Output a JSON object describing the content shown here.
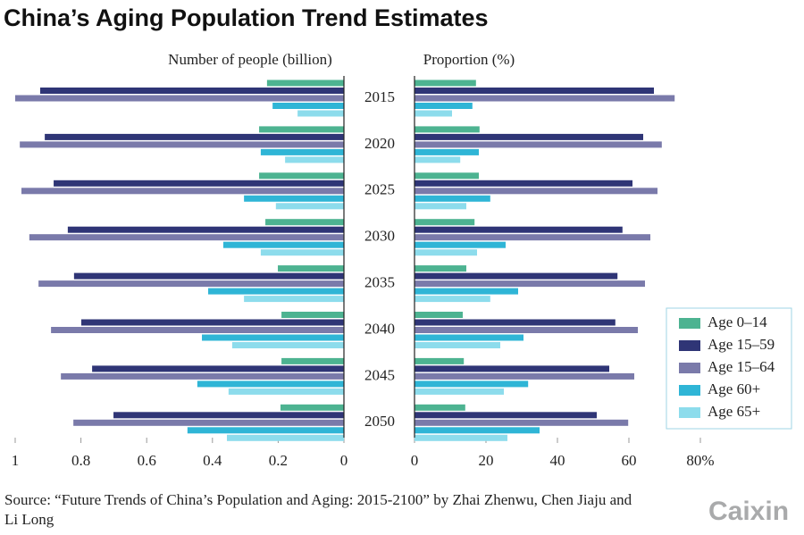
{
  "title": "China’s Aging Population Trend Estimates",
  "source": "Source: “Future Trends of China’s Population and Aging: 2015-2100” by Zhai Zhenwu, Chen Jiaju and Li Long",
  "logo": "Caixin",
  "chart_data": [
    {
      "type": "hbar",
      "xlabel": "Number of people (billion)",
      "categories": [
        "2015",
        "2020",
        "2025",
        "2030",
        "2035",
        "2040",
        "2045",
        "2050"
      ],
      "xlim": [
        1,
        0
      ],
      "xticks": [
        1,
        0.8,
        0.6,
        0.4,
        0.2,
        0
      ],
      "grid": false,
      "series": [
        {
          "color": "#4db391",
          "values": [
            0.234,
            0.258,
            0.258,
            0.239,
            0.201,
            0.19,
            0.19,
            0.193
          ]
        },
        {
          "color": "#2f3576",
          "values": [
            0.924,
            0.91,
            0.883,
            0.84,
            0.821,
            0.799,
            0.766,
            0.701
          ]
        },
        {
          "color": "#7a7aaa",
          "values": [
            1.0,
            0.986,
            0.981,
            0.957,
            0.929,
            0.891,
            0.861,
            0.823
          ]
        },
        {
          "color": "#2fb5d6",
          "values": [
            0.217,
            0.253,
            0.304,
            0.367,
            0.413,
            0.432,
            0.446,
            0.476
          ]
        },
        {
          "color": "#8ddcec",
          "values": [
            0.141,
            0.179,
            0.207,
            0.253,
            0.304,
            0.34,
            0.351,
            0.356
          ]
        }
      ]
    },
    {
      "type": "hbar",
      "xlabel": "Proportion (%)",
      "xlim": [
        0,
        80
      ],
      "xticks": [
        0,
        20,
        40,
        60,
        {
          "value": 80,
          "label": "80%"
        }
      ],
      "grid": false,
      "legend": "lower right",
      "series": [
        {
          "name": "Age 0–14",
          "color": "#4db391",
          "values": [
            17.2,
            18.2,
            18,
            16.8,
            14.5,
            13.5,
            13.8,
            14.2
          ]
        },
        {
          "name": "Age 15–59",
          "color": "#2f3576",
          "values": [
            67,
            64,
            61,
            58.2,
            56.8,
            56.2,
            54.5,
            51
          ]
        },
        {
          "name": "Age 15–64",
          "color": "#7a7aaa",
          "values": [
            72.8,
            69.2,
            68,
            66,
            64.5,
            62.5,
            61.5,
            59.8
          ]
        },
        {
          "name": "Age 60+",
          "color": "#2fb5d6",
          "values": [
            16.2,
            18,
            21.2,
            25.5,
            29,
            30.5,
            31.8,
            35
          ]
        },
        {
          "name": "Age 65+",
          "color": "#8ddcec",
          "values": [
            10.5,
            12.8,
            14.5,
            17.5,
            21.2,
            24,
            25,
            26
          ]
        }
      ]
    }
  ]
}
